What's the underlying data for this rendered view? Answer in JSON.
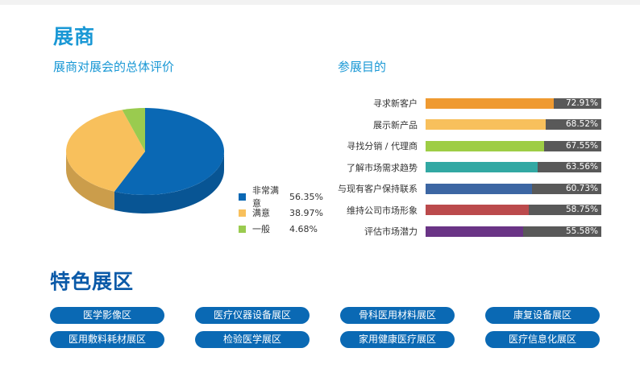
{
  "exhibitor_title": "展商",
  "chart_data": [
    {
      "type": "pie",
      "title": "展商对展会的总体评价",
      "slices": [
        {
          "label": "非常满意",
          "value": 56.35,
          "value_text": "56.35%",
          "color": "#0a68b4"
        },
        {
          "label": "满意",
          "value": 38.97,
          "value_text": "38.97%",
          "color": "#f8c05c"
        },
        {
          "label": "一般",
          "value": 4.68,
          "value_text": "4.68%",
          "color": "#9acb4f"
        }
      ]
    },
    {
      "type": "bar",
      "orientation": "horizontal",
      "title": "参展目的",
      "xlim": [
        0,
        100
      ],
      "categories": [
        "寻求新客户",
        "展示新产品",
        "寻找分销 / 代理商",
        "了解市场需求趋势",
        "与现有客户保持联系",
        "维持公司市场形象",
        "评估市场潜力"
      ],
      "values": [
        72.91,
        68.52,
        67.55,
        63.56,
        60.73,
        58.75,
        55.58
      ],
      "value_texts": [
        "72.91%",
        "68.52%",
        "67.55%",
        "63.56%",
        "60.73%",
        "58.75%",
        "55.58%"
      ],
      "colors": [
        "#ef9a31",
        "#f8c05c",
        "#9ecd45",
        "#32a8a3",
        "#3c66a3",
        "#bb4a4c",
        "#6a3486"
      ],
      "track_color": "#595959"
    }
  ],
  "zones_title": "特色展区",
  "zones": [
    "医学影像区",
    "医疗仪器设备展区",
    "骨科医用材料展区",
    "康复设备展区",
    "医用敷料耗材展区",
    "检验医学展区",
    "家用健康医疗展区",
    "医疗信息化展区"
  ]
}
